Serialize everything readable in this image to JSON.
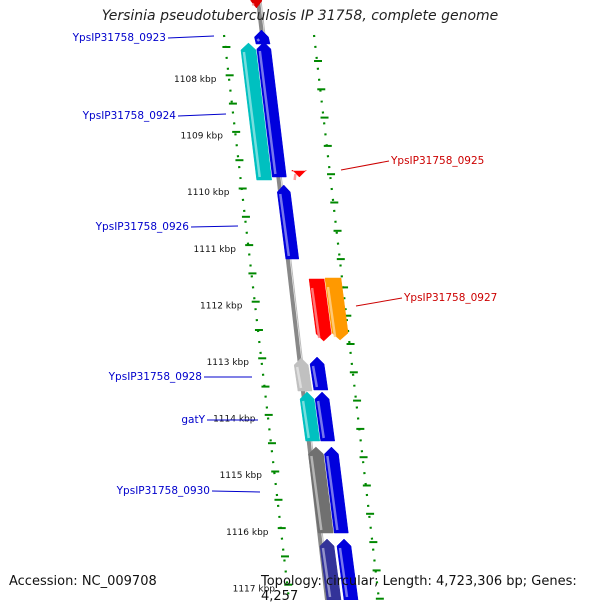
{
  "title": "Yersinia pseudotuberculosis IP 31758, complete genome",
  "accession_label": "Accession: NC_009708",
  "stats_label": "Topology: circular; Length: 4,723,306 bp; Genes: 4,257",
  "ticks": [
    "1108 kbp",
    "1109 kbp",
    "1110 kbp",
    "1111 kbp",
    "1112 kbp",
    "1113 kbp",
    "1114 kbp",
    "1115 kbp",
    "1116 kbp",
    "1117 kbp"
  ],
  "features": [
    {
      "id": "top-red",
      "label": "",
      "strand": "plus",
      "color": "#dd0000"
    },
    {
      "id": "blue-0923",
      "label": "YpsIP31758_0923",
      "strand": "minus",
      "color": "#0000dd"
    },
    {
      "id": "blue-0924",
      "label": "",
      "strand": "minus",
      "color": "#0000dd"
    },
    {
      "id": "cyan-0924",
      "label": "YpsIP31758_0924",
      "strand": "minus",
      "color": "#00c0c0"
    },
    {
      "id": "red-0925",
      "label": "YpsIP31758_0925",
      "strand": "plus",
      "color": "#ff0000"
    },
    {
      "id": "blue-0926",
      "label": "YpsIP31758_0926",
      "strand": "minus",
      "color": "#0000dd"
    },
    {
      "id": "red-0927",
      "label": "YpsIP31758_0927",
      "strand": "plus",
      "color": "#ff0000"
    },
    {
      "id": "orange-0927",
      "label": "",
      "strand": "plus",
      "color": "#ff9900"
    },
    {
      "id": "gray-0928",
      "label": "YpsIP31758_0928",
      "strand": "minus",
      "color": "#c0c0c0"
    },
    {
      "id": "blue-0928",
      "label": "",
      "strand": "minus",
      "color": "#0000dd"
    },
    {
      "id": "cyan-gatY",
      "label": "gatY",
      "strand": "minus",
      "color": "#00c0c0"
    },
    {
      "id": "blue-gatY",
      "label": "",
      "strand": "minus",
      "color": "#0000dd"
    },
    {
      "id": "gray-0930",
      "label": "YpsIP31758_0930",
      "strand": "minus",
      "color": "#707070"
    },
    {
      "id": "blue-0930",
      "label": "",
      "strand": "minus",
      "color": "#0000dd"
    },
    {
      "id": "navy-bottom",
      "label": "",
      "strand": "minus",
      "color": "#333399"
    },
    {
      "id": "blue-bottom",
      "label": "",
      "strand": "minus",
      "color": "#0000dd"
    }
  ],
  "colors": {
    "backbone": "#888888",
    "tick_marks": "#008800",
    "label_blue": "#0000cc",
    "label_red": "#cc0000"
  }
}
